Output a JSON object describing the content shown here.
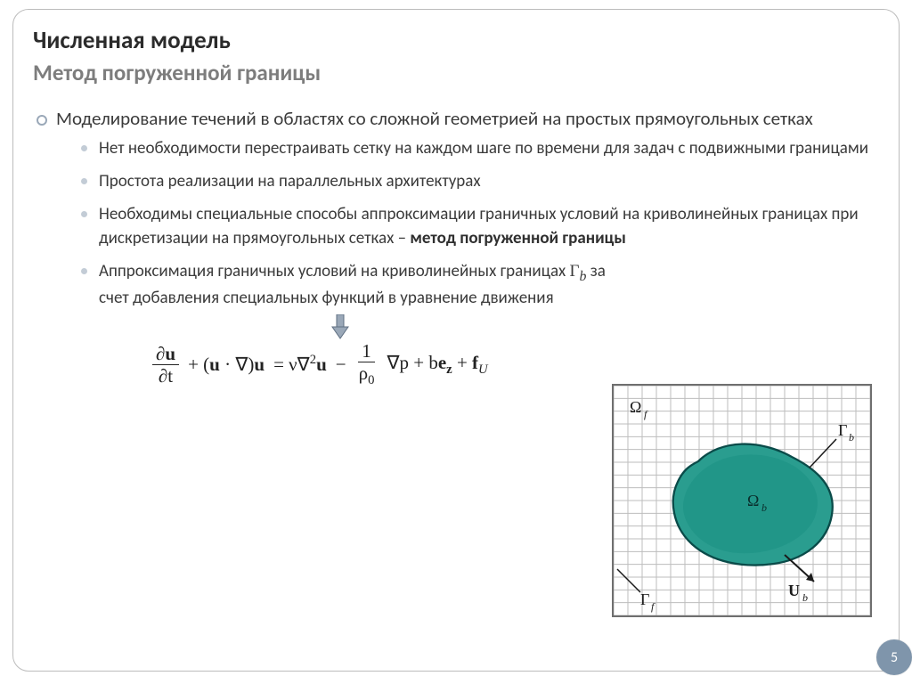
{
  "title": {
    "main": "Численная модель",
    "sub": "Метод погруженной границы"
  },
  "bullets": {
    "outer1": "Моделирование течений в областях со сложной геометрией на простых прямоугольных сетках",
    "inner1": "Нет необходимости перестраивать сетку на каждом шаге по времени для задач с подвижными границами",
    "inner2": "Простота реализации на параллельных архитектурах",
    "inner3_a": "Необходимы специальные способы аппроксимации граничных условий на криволинейных границах при дискретизации на прямоугольных сетках – ",
    "inner3_b": "метод погруженной границы",
    "inner4_a": "Аппроксимация  граничных условий на криволинейных границах ",
    "inner4_gamma": "Γ",
    "inner4_gamma_sub": "b",
    "inner4_b": "  за счет добавления специальных  функций в уравнение движения"
  },
  "equation": {
    "du": "∂u",
    "dt": "∂t",
    "plus1": " + (",
    "u1": "u",
    "dot": " · ∇)",
    "u2": "u",
    "eq": " = ν∇",
    "sq": "2",
    "u3": "u",
    "minus": " − ",
    "one": "1",
    "rho0": "ρ",
    "rho0_sub": "0",
    "gradp": " ∇p + b",
    "ez": "e",
    "ez_sub": "z",
    "plus2": " + ",
    "fU": "f",
    "fU_sub": "U"
  },
  "diagram": {
    "grid_count": 18,
    "grid_color": "#bdbdbd",
    "border_color": "#6f6f6f",
    "blob_fill": "#2a9d8f",
    "blob_fill2": "#17857a",
    "blob_stroke": "#0a4b49",
    "label_Omega_f": "Ω",
    "label_Omega_f_sub": "f",
    "label_Omega_b": "Ω",
    "label_Omega_b_sub": "b",
    "label_Gamma_b": "Γ",
    "label_Gamma_b_sub": "b",
    "label_Gamma_f": "Γ",
    "label_Gamma_f_sub": "f",
    "label_U_b": "U",
    "label_U_b_sub": "b",
    "label_color": "#1a1a1a",
    "label_fontsize": 16,
    "arrow_color": "#1a1a1a"
  },
  "arrow": {
    "body_color": "#9aa8b8",
    "edge_color": "#5f6f82"
  },
  "page_number": "5",
  "colors": {
    "title_main": "#2b2b2b",
    "title_sub": "#7d7d7d",
    "text": "#3b3b3b",
    "bullet_ring": "#9aa8b8",
    "bullet_dot": "#c3ccd6",
    "badge_bg": "#7f95ab",
    "badge_fg": "#ffffff",
    "frame_border": "#bcbcbc"
  }
}
